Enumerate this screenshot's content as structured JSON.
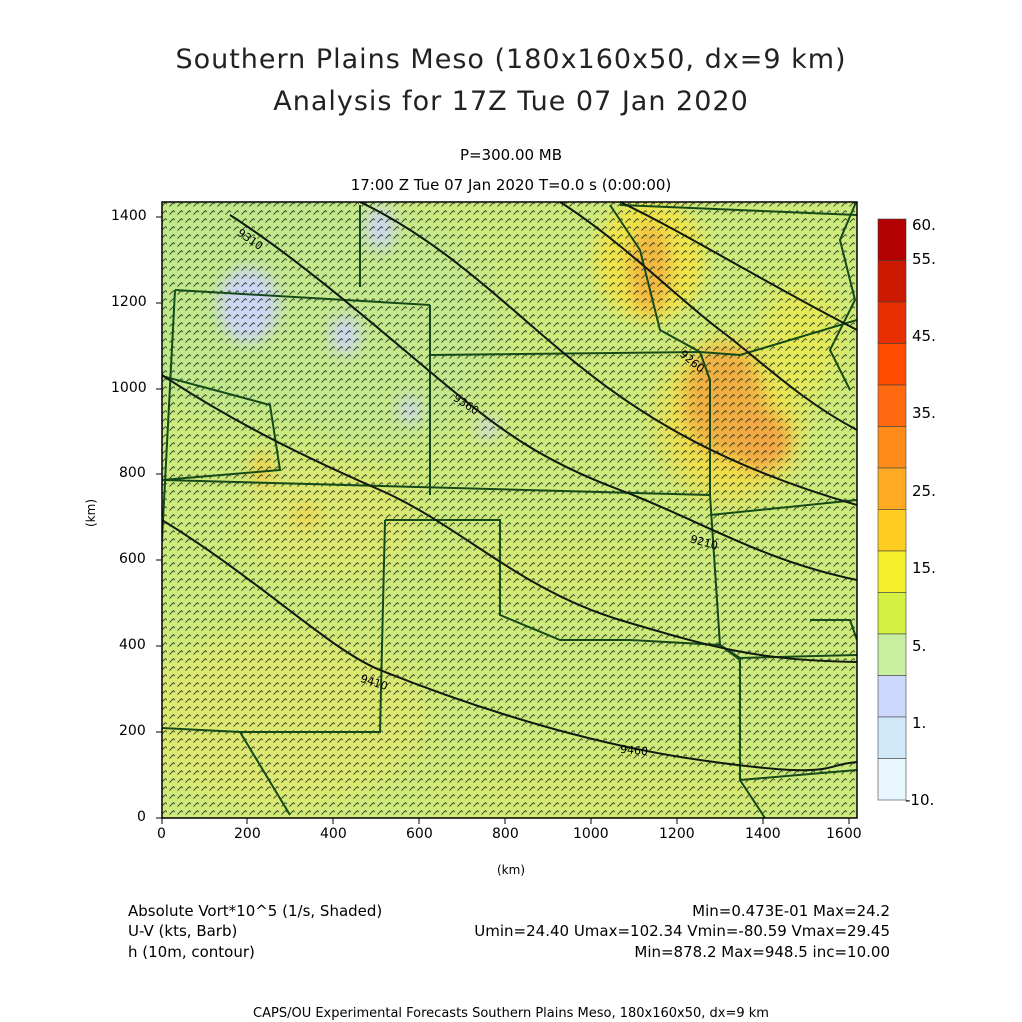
{
  "title": {
    "line1": "Southern Plains Meso (180x160x50, dx=9 km)",
    "line2": "Analysis for 17Z Tue 07 Jan 2020"
  },
  "subtitle": {
    "level": "P=300.00 MB",
    "time": "17:00 Z Tue 07 Jan 2020    T=0.0 s (0:00:00)"
  },
  "axes": {
    "xlabel": "(km)",
    "ylabel": "(km)",
    "x_ticks": [
      "0",
      "200",
      "400",
      "600",
      "800",
      "1000",
      "1200",
      "1400",
      "1600"
    ],
    "y_ticks": [
      "0",
      "200",
      "400",
      "600",
      "800",
      "1000",
      "1200",
      "1400"
    ],
    "x_range_km": [
      0,
      1611
    ],
    "y_range_km": [
      0,
      1431
    ]
  },
  "colorbar": {
    "labels": [
      "60.",
      "55.",
      "45.",
      "35.",
      "25.",
      "15.",
      "5.",
      "1.",
      "-10."
    ],
    "colors": [
      "#b30000",
      "#cc1a00",
      "#e62e00",
      "#ff4d00",
      "#ff6a10",
      "#ff8c1a",
      "#ffaa22",
      "#ffcc22",
      "#f5ee2a",
      "#d4f040",
      "#c8f0a0",
      "#cdd8ff",
      "#d0e8f8",
      "#e8f6ff"
    ]
  },
  "contours": {
    "labels": [
      "9310",
      "9360",
      "9260",
      "9210",
      "9410",
      "9460"
    ]
  },
  "fields": {
    "vort": "Absolute Vort*10^5 (1/s, Shaded)",
    "vort_stats": "Min=0.473E-01 Max=24.2",
    "wind": "U-V (kts, Barb)",
    "wind_stats": "Umin=24.40 Umax=102.34 Vmin=-80.59 Vmax=29.45",
    "height": "h (10m, contour)",
    "height_stats": "Min=878.2 Max=948.5 inc=10.00"
  },
  "footer": "CAPS/OU Experimental Forecasts  Southern Plains Meso, 180x160x50, dx=9 km"
}
